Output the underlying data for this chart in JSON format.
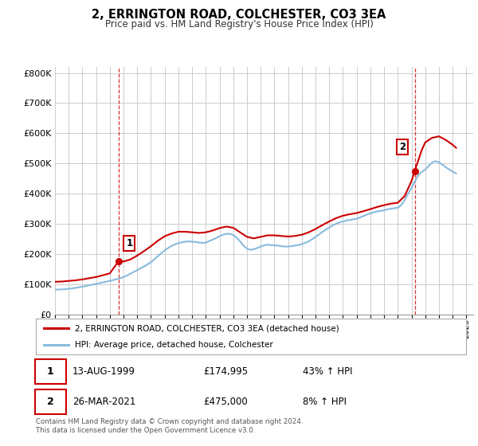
{
  "title": "2, ERRINGTON ROAD, COLCHESTER, CO3 3EA",
  "subtitle": "Price paid vs. HM Land Registry's House Price Index (HPI)",
  "ylabel_ticks": [
    "£0",
    "£100K",
    "£200K",
    "£300K",
    "£400K",
    "£500K",
    "£600K",
    "£700K",
    "£800K"
  ],
  "ytick_values": [
    0,
    100000,
    200000,
    300000,
    400000,
    500000,
    600000,
    700000,
    800000
  ],
  "ylim": [
    0,
    820000
  ],
  "xlim_start": 1995.0,
  "xlim_end": 2025.5,
  "grid_color": "#cccccc",
  "background_color": "#ffffff",
  "property_line_color": "#cc0000",
  "hpi_line_color": "#88bbdd",
  "sale1_x": 1999.62,
  "sale1_y": 174995,
  "sale2_x": 2021.23,
  "sale2_y": 475000,
  "sale1_label": "1",
  "sale2_label": "2",
  "legend_property": "2, ERRINGTON ROAD, COLCHESTER, CO3 3EA (detached house)",
  "legend_hpi": "HPI: Average price, detached house, Colchester",
  "table_rows": [
    {
      "num": "1",
      "date": "13-AUG-1999",
      "price": "£174,995",
      "hpi": "43% ↑ HPI"
    },
    {
      "num": "2",
      "date": "26-MAR-2021",
      "price": "£475,000",
      "hpi": "8% ↑ HPI"
    }
  ],
  "footnote": "Contains HM Land Registry data © Crown copyright and database right 2024.\nThis data is licensed under the Open Government Licence v3.0.",
  "hpi_data_x": [
    1995.0,
    1995.25,
    1995.5,
    1995.75,
    1996.0,
    1996.25,
    1996.5,
    1996.75,
    1997.0,
    1997.25,
    1997.5,
    1997.75,
    1998.0,
    1998.25,
    1998.5,
    1998.75,
    1999.0,
    1999.25,
    1999.5,
    1999.75,
    2000.0,
    2000.25,
    2000.5,
    2000.75,
    2001.0,
    2001.25,
    2001.5,
    2001.75,
    2002.0,
    2002.25,
    2002.5,
    2002.75,
    2003.0,
    2003.25,
    2003.5,
    2003.75,
    2004.0,
    2004.25,
    2004.5,
    2004.75,
    2005.0,
    2005.25,
    2005.5,
    2005.75,
    2006.0,
    2006.25,
    2006.5,
    2006.75,
    2007.0,
    2007.25,
    2007.5,
    2007.75,
    2008.0,
    2008.25,
    2008.5,
    2008.75,
    2009.0,
    2009.25,
    2009.5,
    2009.75,
    2010.0,
    2010.25,
    2010.5,
    2010.75,
    2011.0,
    2011.25,
    2011.5,
    2011.75,
    2012.0,
    2012.25,
    2012.5,
    2012.75,
    2013.0,
    2013.25,
    2013.5,
    2013.75,
    2014.0,
    2014.25,
    2014.5,
    2014.75,
    2015.0,
    2015.25,
    2015.5,
    2015.75,
    2016.0,
    2016.25,
    2016.5,
    2016.75,
    2017.0,
    2017.25,
    2017.5,
    2017.75,
    2018.0,
    2018.25,
    2018.5,
    2018.75,
    2019.0,
    2019.25,
    2019.5,
    2019.75,
    2020.0,
    2020.25,
    2020.5,
    2020.75,
    2021.0,
    2021.25,
    2021.5,
    2021.75,
    2022.0,
    2022.25,
    2022.5,
    2022.75,
    2023.0,
    2023.25,
    2023.5,
    2023.75,
    2024.0,
    2024.25
  ],
  "hpi_data_y": [
    82000,
    82500,
    83000,
    83500,
    85000,
    86500,
    88000,
    90000,
    92000,
    94000,
    96500,
    99000,
    101000,
    103500,
    106000,
    108500,
    111000,
    114000,
    117000,
    120000,
    124000,
    129000,
    135000,
    141000,
    147000,
    153000,
    159000,
    166000,
    173000,
    183000,
    193000,
    203000,
    212000,
    220000,
    227000,
    232000,
    236000,
    239000,
    241000,
    242000,
    241000,
    240000,
    238000,
    237000,
    238000,
    243000,
    248000,
    253000,
    259000,
    264000,
    267000,
    267000,
    263000,
    254000,
    242000,
    228000,
    218000,
    214000,
    216000,
    220000,
    225000,
    229000,
    231000,
    230000,
    229000,
    228000,
    226000,
    225000,
    225000,
    226000,
    228000,
    230000,
    233000,
    237000,
    242000,
    249000,
    257000,
    265000,
    273000,
    281000,
    288000,
    295000,
    300000,
    305000,
    308000,
    311000,
    313000,
    315000,
    317000,
    321000,
    326000,
    331000,
    335000,
    338000,
    341000,
    343000,
    345000,
    348000,
    350000,
    352000,
    353000,
    362000,
    379000,
    400000,
    420000,
    441000,
    462000,
    472000,
    480000,
    492000,
    503000,
    508000,
    504000,
    496000,
    488000,
    480000,
    473000,
    467000
  ],
  "property_data_x": [
    1995.0,
    1995.5,
    1996.0,
    1996.5,
    1997.0,
    1997.5,
    1998.0,
    1998.5,
    1999.0,
    1999.62,
    2000.0,
    2000.5,
    2001.0,
    2001.5,
    2002.0,
    2002.5,
    2003.0,
    2003.5,
    2004.0,
    2004.5,
    2005.0,
    2005.5,
    2006.0,
    2006.5,
    2007.0,
    2007.5,
    2008.0,
    2008.5,
    2009.0,
    2009.5,
    2010.0,
    2010.5,
    2011.0,
    2011.5,
    2012.0,
    2012.5,
    2013.0,
    2013.5,
    2014.0,
    2014.5,
    2015.0,
    2015.5,
    2016.0,
    2016.5,
    2017.0,
    2017.5,
    2018.0,
    2018.5,
    2019.0,
    2019.5,
    2020.0,
    2020.5,
    2021.0,
    2021.23,
    2021.75,
    2022.0,
    2022.5,
    2023.0,
    2023.5,
    2024.0,
    2024.25
  ],
  "property_data_y": [
    108000,
    109000,
    111000,
    113000,
    116000,
    120000,
    124000,
    130000,
    136000,
    174995,
    175500,
    182000,
    195000,
    210000,
    226000,
    244000,
    259000,
    268000,
    274000,
    274000,
    272000,
    270000,
    272000,
    278000,
    286000,
    291000,
    287000,
    272000,
    257000,
    252000,
    257000,
    262000,
    262000,
    260000,
    258000,
    260000,
    264000,
    272000,
    283000,
    296000,
    308000,
    319000,
    327000,
    332000,
    336000,
    342000,
    349000,
    356000,
    362000,
    367000,
    370000,
    392000,
    442000,
    475000,
    545000,
    570000,
    585000,
    590000,
    578000,
    562000,
    552000
  ]
}
